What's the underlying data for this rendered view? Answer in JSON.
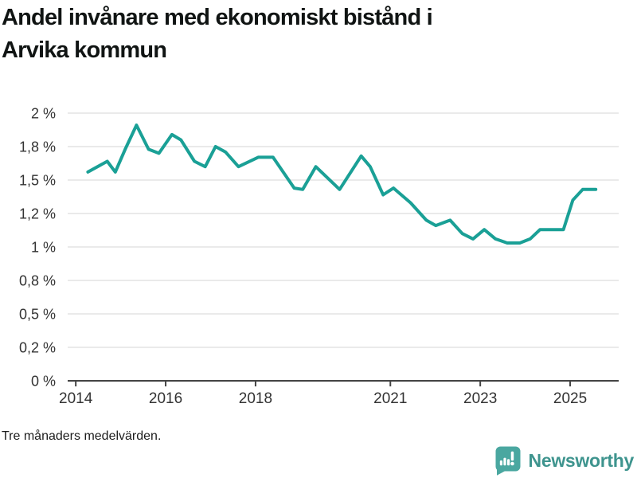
{
  "header": {
    "title": "Andel invånare med ekonomiskt bistånd i Arvika kommun",
    "title_lines": [
      "Andel invånare med ekonomiskt bistånd i",
      "Arvika kommun"
    ]
  },
  "footer": {
    "note": "Tre månaders medelvärden.",
    "brand": {
      "name": "Newsworthy",
      "icon": "newsworthy-speech-bubble-bar-chart-icon",
      "icon_color": "#4aa7a0",
      "text_color": "#3e948e"
    }
  },
  "chart_data": {
    "type": "line",
    "title": "Andel invånare med ekonomiskt bistånd i Arvika kommun",
    "subtitle": "",
    "note": "Tre månaders medelvärden.",
    "series_name": "Andel invånare med ekonomiskt bistånd, Arvika kommun",
    "x_unit": "year (decimal)",
    "y_unit": "percent",
    "x": [
      2014.27,
      2014.7,
      2014.88,
      2015.1,
      2015.35,
      2015.62,
      2015.85,
      2016.14,
      2016.34,
      2016.64,
      2016.88,
      2017.11,
      2017.33,
      2017.62,
      2018.06,
      2018.39,
      2018.86,
      2019.05,
      2019.34,
      2019.87,
      2020.35,
      2020.55,
      2020.84,
      2021.07,
      2021.45,
      2021.8,
      2022.01,
      2022.33,
      2022.6,
      2022.84,
      2023.09,
      2023.34,
      2023.6,
      2023.88,
      2024.11,
      2024.33,
      2024.85,
      2025.06,
      2025.28,
      2025.57
    ],
    "y": [
      1.56,
      1.64,
      1.56,
      1.73,
      1.91,
      1.73,
      1.7,
      1.84,
      1.8,
      1.64,
      1.6,
      1.75,
      1.71,
      1.6,
      1.67,
      1.67,
      1.44,
      1.43,
      1.6,
      1.43,
      1.68,
      1.6,
      1.39,
      1.44,
      1.33,
      1.2,
      1.16,
      1.2,
      1.1,
      1.06,
      1.13,
      1.06,
      1.03,
      1.03,
      1.06,
      1.13,
      1.13,
      1.35,
      1.43,
      1.43
    ],
    "x_ticks": [
      {
        "value": 2014,
        "label": "2014"
      },
      {
        "value": 2016,
        "label": "2016"
      },
      {
        "value": 2018,
        "label": "2018"
      },
      {
        "value": 2021,
        "label": "2021"
      },
      {
        "value": 2023,
        "label": "2023"
      },
      {
        "value": 2025,
        "label": "2025"
      }
    ],
    "y_ticks": [
      {
        "value": 0,
        "label": "0 %"
      },
      {
        "value": 0.25,
        "label": "0,2 %"
      },
      {
        "value": 0.5,
        "label": "0,5 %"
      },
      {
        "value": 0.75,
        "label": "0,8 %"
      },
      {
        "value": 1,
        "label": "1 %"
      },
      {
        "value": 1.25,
        "label": "1,2 %"
      },
      {
        "value": 1.5,
        "label": "1,5 %"
      },
      {
        "value": 1.75,
        "label": "1,8 %"
      },
      {
        "value": 2,
        "label": "2 %"
      }
    ],
    "xlim": [
      2013.82,
      2026.08
    ],
    "ylim": [
      0,
      2
    ],
    "grid": "horizontal",
    "legend": "none",
    "line_color": "#1aa096",
    "line_width": 4,
    "gridline_color": "#e3e3e3",
    "axis_color": "#444444",
    "tick_label_color": "#333333"
  }
}
